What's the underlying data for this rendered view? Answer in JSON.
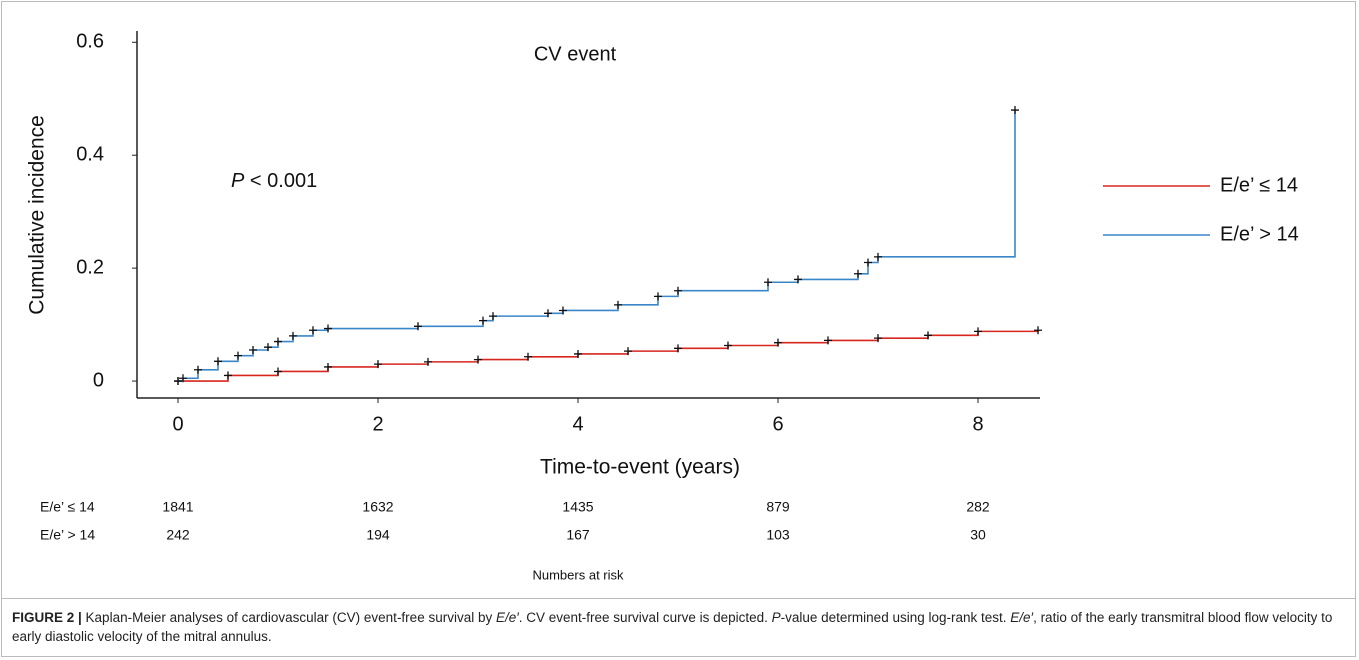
{
  "chart_data": {
    "type": "step",
    "title": "CV event",
    "annotation": {
      "italic": "P",
      "text": " < 0.001"
    },
    "x_label": "Time-to-event (years)",
    "y_label": "Cumulative incidence",
    "xlim": [
      -0.41,
      8.62
    ],
    "ylim": [
      -0.03,
      0.62
    ],
    "xticks": [
      0,
      2,
      4,
      6,
      8
    ],
    "yticks": [
      0,
      0.2,
      0.4,
      0.6
    ],
    "legend": "right",
    "series": [
      {
        "name": "E/e’ ≤ 14",
        "color": "#d7261e",
        "x": [
          0,
          0.5,
          1,
          1.5,
          2,
          2.5,
          3,
          3.5,
          4,
          4.5,
          5,
          5.5,
          6,
          6.5,
          7,
          7.5,
          8,
          8.6
        ],
        "values": [
          0,
          0.01,
          0.017,
          0.025,
          0.03,
          0.034,
          0.038,
          0.043,
          0.048,
          0.053,
          0.058,
          0.063,
          0.068,
          0.072,
          0.076,
          0.081,
          0.088,
          0.09
        ]
      },
      {
        "name": "E/e’ > 14",
        "color": "#3a86c8",
        "x": [
          0,
          0.05,
          0.2,
          0.4,
          0.6,
          0.75,
          0.9,
          1.0,
          1.15,
          1.35,
          1.5,
          2.4,
          3.05,
          3.15,
          3.7,
          3.85,
          4.4,
          4.8,
          5.0,
          5.9,
          6.2,
          6.8,
          6.9,
          7.0,
          8.37
        ],
        "values": [
          0,
          0.005,
          0.02,
          0.035,
          0.045,
          0.055,
          0.06,
          0.07,
          0.08,
          0.09,
          0.093,
          0.097,
          0.107,
          0.115,
          0.12,
          0.125,
          0.135,
          0.15,
          0.16,
          0.175,
          0.18,
          0.19,
          0.21,
          0.22,
          0.48
        ]
      }
    ],
    "risk_table": {
      "title": "Numbers at risk",
      "rows": [
        {
          "name": "E/e’ ≤ 14",
          "values": [
            1841,
            1632,
            1435,
            879,
            282
          ]
        },
        {
          "name": "E/e’ > 14",
          "values": [
            242,
            194,
            167,
            103,
            30
          ]
        }
      ]
    }
  },
  "caption": {
    "label": "FIGURE 2 |",
    "segments": [
      {
        "text": " Kaplan-Meier analyses of cardiovascular (CV) event-free survival by "
      },
      {
        "text": "E/e′",
        "italic": true
      },
      {
        "text": ". CV event-free survival curve is depicted. "
      },
      {
        "text": "P",
        "italic": true
      },
      {
        "text": "-value determined using log-rank test. "
      },
      {
        "text": "E/e′",
        "italic": true
      },
      {
        "text": ", ratio of the early transmitral blood flow velocity to early diastolic velocity of the mitral annulus."
      }
    ]
  }
}
